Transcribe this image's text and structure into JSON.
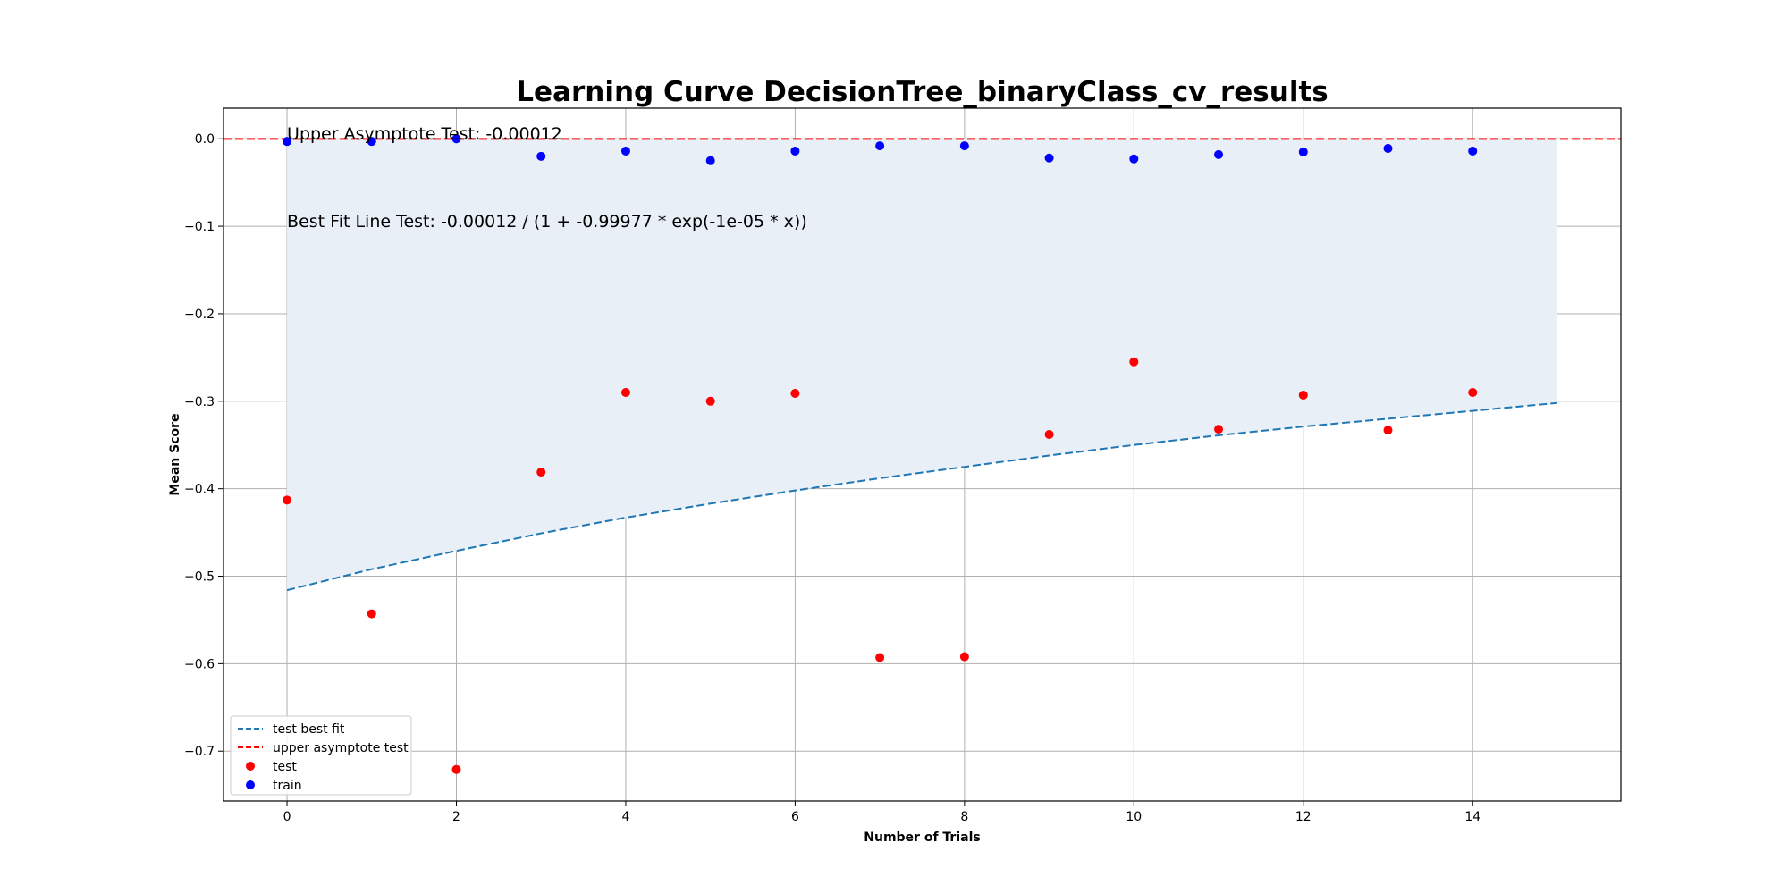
{
  "chart_data": {
    "type": "scatter",
    "title": "Learning Curve DecisionTree_binaryClass_cv_results",
    "xlabel": "Number of Trials",
    "ylabel": "Mean Score",
    "xlim": [
      -0.75,
      15.75
    ],
    "ylim": [
      -0.757,
      0.035
    ],
    "x_ticks": [
      0,
      2,
      4,
      6,
      8,
      10,
      12,
      14
    ],
    "y_ticks": [
      0.0,
      -0.1,
      -0.2,
      -0.3,
      -0.4,
      -0.5,
      -0.6,
      -0.7
    ],
    "x_tick_labels": [
      "0",
      "2",
      "4",
      "6",
      "8",
      "10",
      "12",
      "14"
    ],
    "y_tick_labels": [
      "0.0",
      "−0.1",
      "−0.2",
      "−0.3",
      "−0.4",
      "−0.5",
      "−0.6",
      "−0.7"
    ],
    "grid": true,
    "legend_position": "lower-left",
    "series": [
      {
        "name": "test best fit",
        "kind": "dashed-line",
        "color": "#1f77b4",
        "x": [
          0,
          1,
          2,
          3,
          4,
          5,
          6,
          7,
          8,
          9,
          10,
          11,
          12,
          13,
          14,
          15
        ],
        "y": [
          -0.516,
          -0.492,
          -0.471,
          -0.451,
          -0.433,
          -0.417,
          -0.402,
          -0.388,
          -0.375,
          -0.362,
          -0.35,
          -0.339,
          -0.329,
          -0.32,
          -0.311,
          -0.302
        ]
      },
      {
        "name": "upper asymptote test",
        "kind": "hline",
        "color": "#ff0000",
        "y": -0.00012
      },
      {
        "name": "test",
        "kind": "scatter",
        "color": "#ff0000",
        "x": [
          0,
          1,
          2,
          3,
          4,
          5,
          6,
          7,
          8,
          9,
          10,
          11,
          12,
          13,
          14
        ],
        "y": [
          -0.413,
          -0.543,
          -0.721,
          -0.381,
          -0.29,
          -0.3,
          -0.291,
          -0.593,
          -0.592,
          -0.338,
          -0.255,
          -0.332,
          -0.293,
          -0.333,
          -0.29
        ]
      },
      {
        "name": "train",
        "kind": "scatter",
        "color": "#0000ff",
        "x": [
          0,
          1,
          2,
          3,
          4,
          5,
          6,
          7,
          8,
          9,
          10,
          11,
          12,
          13,
          14
        ],
        "y": [
          -0.003,
          -0.003,
          0.0,
          -0.02,
          -0.014,
          -0.025,
          -0.014,
          -0.008,
          -0.008,
          -0.022,
          -0.023,
          -0.018,
          -0.015,
          -0.011,
          -0.014
        ]
      }
    ],
    "shaded_region": {
      "color": "#e8eff7",
      "between": [
        "upper asymptote test",
        "test best fit"
      ],
      "x_range": [
        0,
        15
      ]
    },
    "annotations": [
      {
        "text": "Upper Asymptote Test: -0.00012",
        "x": 0,
        "y": 0.0
      },
      {
        "text": "Best Fit Line Test: -0.00012 / (1 + -0.99977 * exp(-1e-05 * x))",
        "x": 0,
        "y": -0.1
      }
    ]
  }
}
